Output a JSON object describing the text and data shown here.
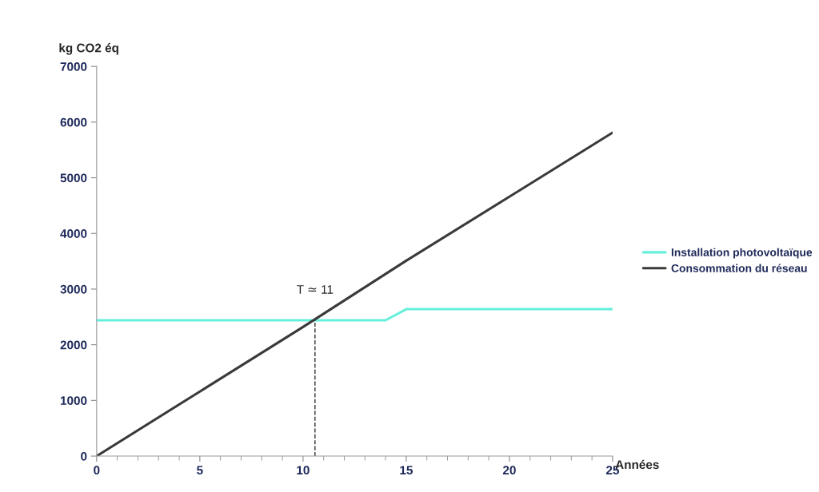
{
  "chart_data": {
    "type": "line",
    "ylabel": "kg CO2 éq",
    "xlabel": "Années",
    "xlim": [
      0,
      25
    ],
    "xticks": [
      0,
      5,
      10,
      15,
      20,
      25
    ],
    "ylim": [
      0,
      7000
    ],
    "yticks": [
      0,
      1000,
      2000,
      3000,
      4000,
      5000,
      6000,
      7000
    ],
    "grid": false,
    "legend": "right",
    "marker": "none",
    "series": [
      {
        "name": "Installation photovoltaïque",
        "color": "#66f0dc",
        "x": [
          0,
          14,
          15,
          25
        ],
        "values": [
          2440,
          2440,
          2640,
          2640
        ]
      },
      {
        "name": "Consommation du réseau",
        "color": "#3a3a3a",
        "x": [
          0,
          5,
          10,
          15,
          20,
          25
        ],
        "values": [
          0,
          1160,
          2320,
          3510,
          4660,
          5810
        ]
      },
      {
        "color": "#333333",
        "line_style": "dashed",
        "x": [
          10.58,
          10.58
        ],
        "values": [
          0,
          2440
        ]
      }
    ],
    "annotations": [
      {
        "text": "T ≃ 11",
        "x": 10.58,
        "y": 2440
      }
    ]
  }
}
